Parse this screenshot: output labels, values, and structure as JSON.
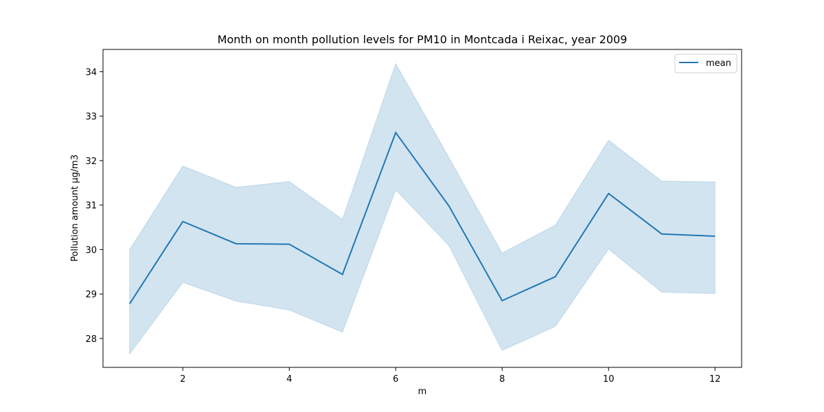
{
  "chart_data": {
    "type": "line",
    "title": "Month on month pollution levels for PM10 in Montcada i Reixac, year 2009",
    "xlabel": "m",
    "ylabel": "Pollution amount μg/m3",
    "xlim": [
      0.5,
      12.5
    ],
    "ylim": [
      27.35,
      34.5
    ],
    "xticks": [
      2,
      4,
      6,
      8,
      10,
      12
    ],
    "yticks": [
      28,
      29,
      30,
      31,
      32,
      33,
      34
    ],
    "legend_position": "top-right",
    "grid": false,
    "series": [
      {
        "name": "mean",
        "color": "#1f77b4",
        "x": [
          1,
          2,
          3,
          4,
          5,
          6,
          7,
          8,
          9,
          10,
          11,
          12
        ],
        "values": [
          28.78,
          30.63,
          30.13,
          30.12,
          29.44,
          32.63,
          30.98,
          28.85,
          29.39,
          31.26,
          30.35,
          30.3
        ],
        "band_upper": [
          30.0,
          31.88,
          31.4,
          31.53,
          30.68,
          34.18,
          32.07,
          29.92,
          30.55,
          32.46,
          31.54,
          31.52
        ],
        "band_lower": [
          27.65,
          29.26,
          28.84,
          28.64,
          28.14,
          31.34,
          30.09,
          27.73,
          28.27,
          30.01,
          29.04,
          29.01
        ]
      }
    ]
  }
}
